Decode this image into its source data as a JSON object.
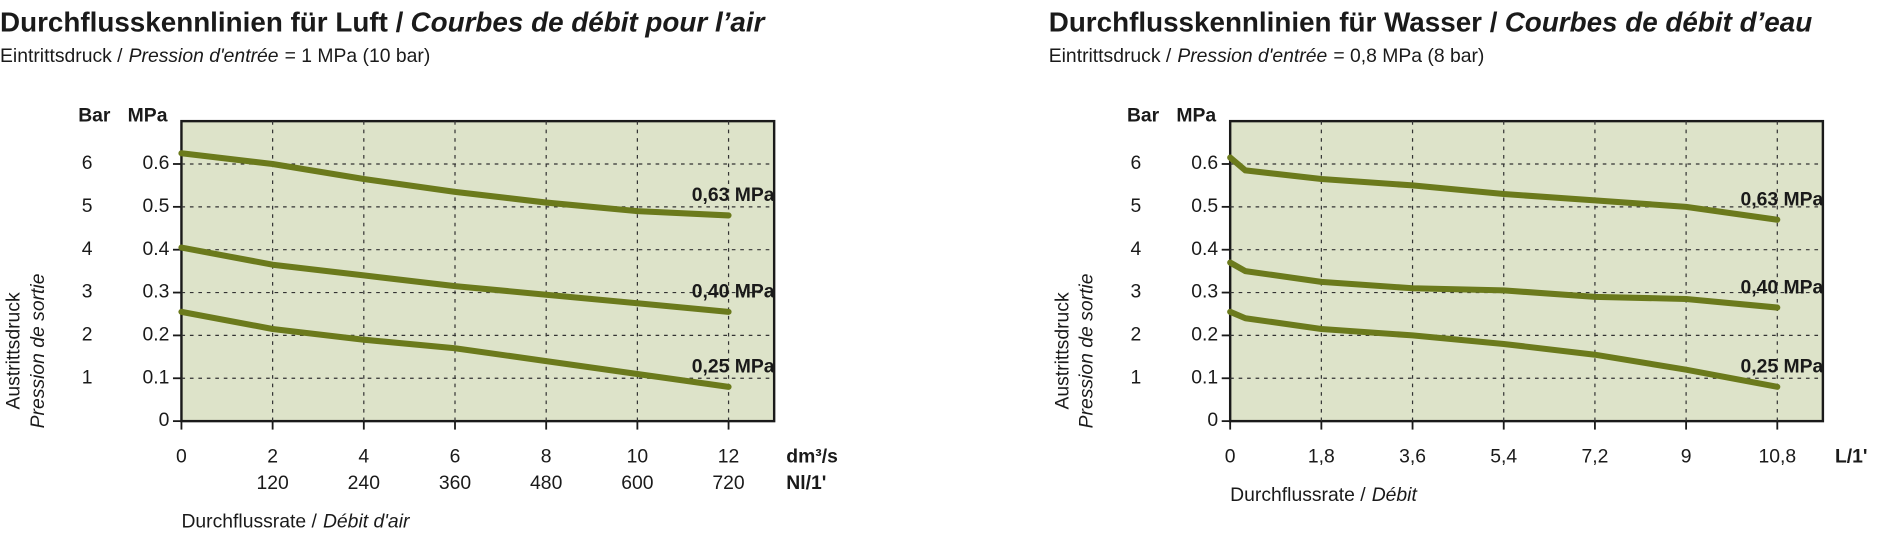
{
  "chart_data": [
    {
      "type": "line",
      "title": "Durchflusskennlinien für Luft /",
      "title_fr": "Courbes de débit pour l’air",
      "subtitle": "Eintrittsdruck /",
      "subtitle_fr": "Pression d'entrée",
      "subtitle_value": "= 1 MPa (10 bar)",
      "ylabel": "Austrittsdruck",
      "ylabel_fr": "Pression de sortie",
      "y_unit": "MPa",
      "y2_unit": "Bar",
      "xlabel": "Durchflussrate /",
      "xlabel_fr": "Débit d'air",
      "x_unit": "dm³/s",
      "x2_unit": "Nl/1'",
      "x": [
        0,
        2,
        4,
        6,
        8,
        10,
        12
      ],
      "series": [
        {
          "name": "0,63 MPa",
          "color": "#6b7a1c",
          "values": [
            0.625,
            0.6,
            0.565,
            0.535,
            0.51,
            0.49,
            0.48
          ]
        },
        {
          "name": "0,40 MPa",
          "color": "#6b7a1c",
          "values": [
            0.405,
            0.365,
            0.34,
            0.315,
            0.295,
            0.275,
            0.255
          ]
        },
        {
          "name": "0,25 MPa",
          "color": "#6b7a1c",
          "values": [
            0.255,
            0.215,
            0.19,
            0.17,
            0.14,
            0.11,
            0.08
          ]
        }
      ],
      "xlim": [
        0,
        13
      ],
      "xticks": [
        0,
        2,
        4,
        6,
        8,
        10,
        12
      ],
      "x2lim": [
        0,
        780
      ],
      "x2ticks": [
        120,
        240,
        360,
        480,
        600,
        720
      ],
      "ylim": [
        0,
        0.7
      ],
      "yticks": [
        0,
        0.1,
        0.2,
        0.3,
        0.4,
        0.5,
        0.6
      ],
      "y2lim": [
        0,
        7
      ],
      "y2ticks": [
        1,
        2,
        3,
        4,
        5,
        6
      ],
      "grid": true,
      "background": "#dde3c9"
    },
    {
      "type": "line",
      "title": "Durchflusskennlinien für Wasser /",
      "title_fr": "Courbes de débit d’eau",
      "subtitle": "Eintrittsdruck /",
      "subtitle_fr": "Pression d'entrée",
      "subtitle_value": "= 0,8 MPa (8 bar)",
      "ylabel": "Austrittsdruck",
      "ylabel_fr": "Pression de sortie",
      "y_unit": "MPa",
      "y2_unit": "Bar",
      "xlabel": "Durchflussrate /",
      "xlabel_fr": "Débit",
      "x_unit": "L/1'",
      "x": [
        0,
        0.3,
        1.8,
        3.6,
        5.4,
        7.2,
        9,
        10.8
      ],
      "series": [
        {
          "name": "0,63 MPa",
          "color": "#6b7a1c",
          "values": [
            0.615,
            0.585,
            0.565,
            0.55,
            0.53,
            0.515,
            0.5,
            0.47
          ]
        },
        {
          "name": "0,40 MPa",
          "color": "#6b7a1c",
          "values": [
            0.37,
            0.35,
            0.325,
            0.31,
            0.305,
            0.29,
            0.285,
            0.265
          ]
        },
        {
          "name": "0,25 MPa",
          "color": "#6b7a1c",
          "values": [
            0.255,
            0.24,
            0.215,
            0.2,
            0.18,
            0.155,
            0.12,
            0.08
          ]
        }
      ],
      "xlim": [
        0,
        11.7
      ],
      "xticks": [
        0,
        {
          "value": 1.8,
          "label": "1,8"
        },
        {
          "value": 3.6,
          "label": "3,6"
        },
        {
          "value": 5.4,
          "label": "5,4"
        },
        {
          "value": 7.2,
          "label": "7,2"
        },
        9,
        {
          "value": 10.8,
          "label": "10,8"
        }
      ],
      "ylim": [
        0,
        0.7
      ],
      "yticks": [
        0,
        0.1,
        0.2,
        0.3,
        0.4,
        0.5,
        0.6
      ],
      "y2lim": [
        0,
        7
      ],
      "y2ticks": [
        1,
        2,
        3,
        4,
        5,
        6
      ],
      "grid": true,
      "background": "#dde3c9"
    }
  ]
}
